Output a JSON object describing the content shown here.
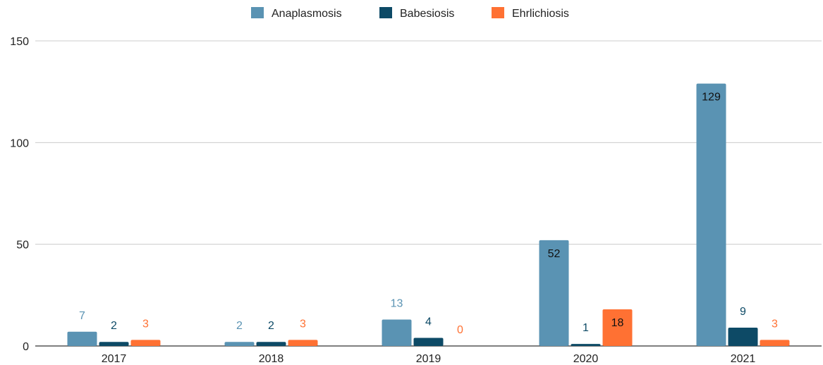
{
  "chart_data": {
    "type": "bar",
    "title": "",
    "xlabel": "",
    "ylabel": "",
    "categories": [
      "2017",
      "2018",
      "2019",
      "2020",
      "2021"
    ],
    "ylim": [
      0,
      150
    ],
    "yticks": [
      0,
      50,
      100,
      150
    ],
    "grid": true,
    "legend_position": "top",
    "series": [
      {
        "name": "Anaplasmosis",
        "color": "#5a93b3",
        "values": [
          7,
          2,
          13,
          52,
          129
        ]
      },
      {
        "name": "Babesiosis",
        "color": "#0d4a66",
        "values": [
          2,
          2,
          4,
          1,
          9
        ]
      },
      {
        "name": "Ehrlichiosis",
        "color": "#ff7133",
        "values": [
          3,
          3,
          0,
          18,
          3
        ]
      }
    ]
  }
}
